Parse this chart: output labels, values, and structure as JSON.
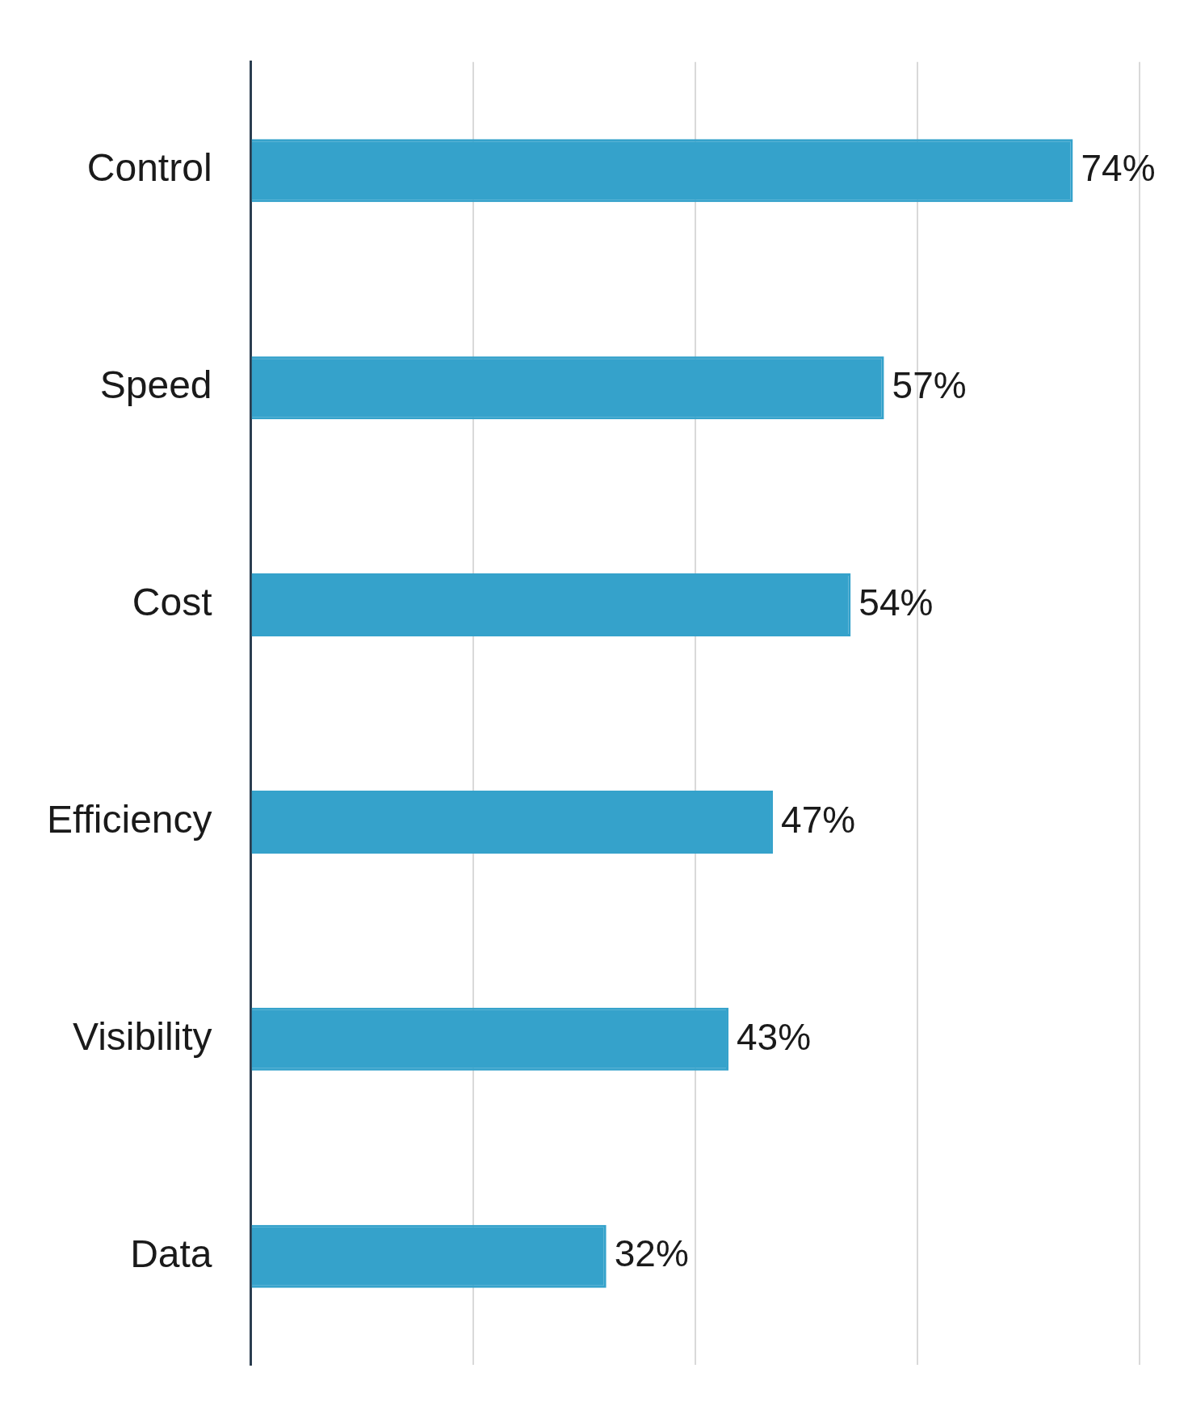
{
  "chart_data": {
    "type": "bar",
    "orientation": "horizontal",
    "categories": [
      "Control",
      "Speed",
      "Cost",
      "Efficiency",
      "Visibility",
      "Data"
    ],
    "series": [
      {
        "color": "#35a2cb",
        "values": [
          74,
          57,
          54,
          47,
          43,
          32
        ],
        "value_labels": [
          "74%",
          "57%",
          "54%",
          "47%",
          "43%",
          "32%"
        ]
      }
    ],
    "xlim": [
      0,
      80
    ],
    "xticks": [
      {
        "value": 0,
        "label": null
      },
      {
        "value": 20,
        "label": null
      },
      {
        "value": 40,
        "label": null
      },
      {
        "value": 60,
        "label": null
      },
      {
        "value": 80,
        "label": null
      }
    ],
    "grid": "x",
    "tick_labels": "y",
    "legend": false
  }
}
